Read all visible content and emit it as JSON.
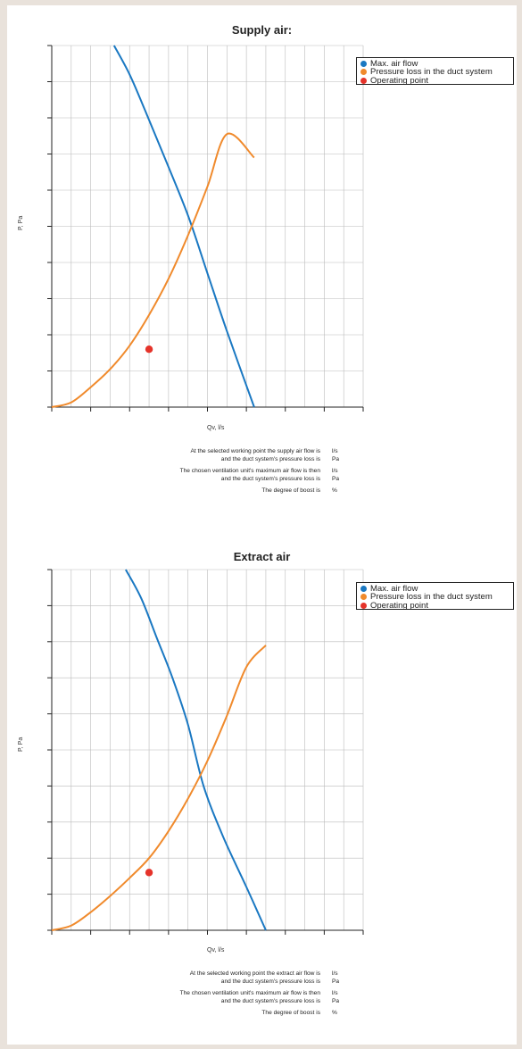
{
  "colors": {
    "max_air_flow": "#1a78c2",
    "pressure_loss": "#f08a2c",
    "operating_point": "#e5332a",
    "grid": "#bbbbbb",
    "axis": "#222222"
  },
  "charts": [
    {
      "title": "Supply air:",
      "ylabel": "P, Pa",
      "xlabel": "Qv, l/s",
      "legend": [
        "Max. air flow",
        "Pressure loss in the duct system",
        "Operating point"
      ],
      "info": [
        {
          "text": "At the selected working point the supply air flow is",
          "unit": "l/s"
        },
        {
          "text": "and the duct system's pressure loss is",
          "unit": "Pa"
        },
        {
          "text": "The chosen ventilation unit's maximum air flow is then",
          "unit": "l/s"
        },
        {
          "text": "and the duct system's pressure loss is",
          "unit": "Pa"
        },
        {
          "text": "The degree of boost is",
          "unit": "%"
        }
      ]
    },
    {
      "title": "Extract air",
      "ylabel": "P, Pa",
      "xlabel": "Qv, l/s",
      "legend": [
        "Max. air flow",
        "Pressure loss in the duct system",
        "Operating point"
      ],
      "info": [
        {
          "text": "At the selected working point the extract air flow is",
          "unit": "l/s"
        },
        {
          "text": "and the duct system's pressure loss is",
          "unit": "Pa"
        },
        {
          "text": "The chosen ventilation unit's maximum air flow is then",
          "unit": "l/s"
        },
        {
          "text": "and the duct system's pressure loss is",
          "unit": "Pa"
        },
        {
          "text": "The degree of boost is",
          "unit": "%"
        }
      ]
    }
  ],
  "chart_data": [
    {
      "type": "line",
      "title": "Supply air:",
      "xlabel": "Qv, l/s",
      "ylabel": "P, Pa",
      "xlim": [
        0,
        8
      ],
      "ylim": [
        0,
        10
      ],
      "x_ticks": 8,
      "y_ticks": 10,
      "grid": true,
      "legend_position": "top-right",
      "series": [
        {
          "name": "Max. air flow",
          "x": [
            1.6,
            2.0,
            2.4,
            2.9,
            3.5,
            4.0,
            4.5,
            5.2
          ],
          "y": [
            10.0,
            9.2,
            8.2,
            6.9,
            5.3,
            3.7,
            2.1,
            0.0
          ]
        },
        {
          "name": "Pressure loss in the duct system",
          "x": [
            0.0,
            0.5,
            1.0,
            1.5,
            2.0,
            2.5,
            3.0,
            3.5,
            4.0,
            4.5,
            5.2
          ],
          "y": [
            0.0,
            0.13,
            0.55,
            1.05,
            1.7,
            2.55,
            3.55,
            4.75,
            6.1,
            7.55,
            6.9
          ]
        },
        {
          "name": "Operating point",
          "x": [
            2.5
          ],
          "y": [
            1.6
          ]
        }
      ]
    },
    {
      "type": "line",
      "title": "Extract air",
      "xlabel": "Qv, l/s",
      "ylabel": "P, Pa",
      "xlim": [
        0,
        8
      ],
      "ylim": [
        0,
        10
      ],
      "x_ticks": 8,
      "y_ticks": 10,
      "grid": true,
      "legend_position": "top-right",
      "series": [
        {
          "name": "Max. air flow",
          "x": [
            1.9,
            2.3,
            2.7,
            3.1,
            3.5,
            3.9,
            4.4,
            5.0,
            5.5
          ],
          "y": [
            10.0,
            9.2,
            8.1,
            7.0,
            5.7,
            4.0,
            2.6,
            1.2,
            0.0
          ]
        },
        {
          "name": "Pressure loss in the duct system",
          "x": [
            0.0,
            0.5,
            1.0,
            1.5,
            2.0,
            2.5,
            3.0,
            3.5,
            4.0,
            4.5,
            5.0,
            5.5
          ],
          "y": [
            0.0,
            0.13,
            0.5,
            0.95,
            1.45,
            2.0,
            2.75,
            3.65,
            4.7,
            5.95,
            7.3,
            7.9
          ]
        },
        {
          "name": "Operating point",
          "x": [
            2.5
          ],
          "y": [
            1.6
          ]
        }
      ]
    }
  ]
}
